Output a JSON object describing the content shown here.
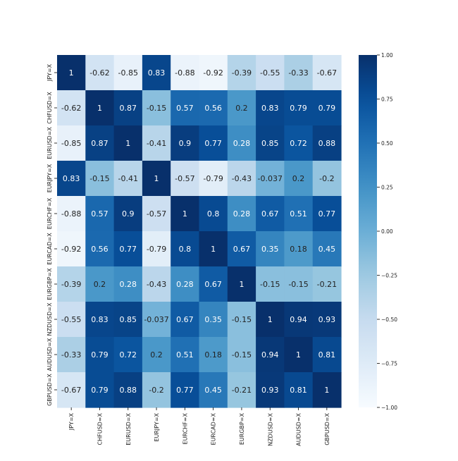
{
  "chart_data": {
    "type": "heatmap",
    "title": "",
    "xlabel": "",
    "ylabel": "",
    "labels": [
      "JPY=X",
      "CHFUSD=X",
      "EURUSD=X",
      "EURJPY=X",
      "EURCHF=X",
      "EURCAD=X",
      "EURGBP=X",
      "NZDUSD=X",
      "AUDUSD=X",
      "GBPUSD=X"
    ],
    "values": [
      [
        1,
        -0.62,
        -0.85,
        0.83,
        -0.88,
        -0.92,
        -0.39,
        -0.55,
        -0.33,
        -0.67
      ],
      [
        -0.62,
        1,
        0.87,
        -0.15,
        0.57,
        0.56,
        0.2,
        0.83,
        0.79,
        0.79
      ],
      [
        -0.85,
        0.87,
        1,
        -0.41,
        0.9,
        0.77,
        0.28,
        0.85,
        0.72,
        0.88
      ],
      [
        0.83,
        -0.15,
        -0.41,
        1,
        -0.57,
        -0.79,
        -0.43,
        -0.037,
        0.2,
        -0.2
      ],
      [
        -0.88,
        0.57,
        0.9,
        -0.57,
        1,
        0.8,
        0.28,
        0.67,
        0.51,
        0.77
      ],
      [
        -0.92,
        0.56,
        0.77,
        -0.79,
        0.8,
        1,
        0.67,
        0.35,
        0.18,
        0.45
      ],
      [
        -0.39,
        0.2,
        0.28,
        -0.43,
        0.28,
        0.67,
        1,
        -0.15,
        -0.15,
        -0.21
      ],
      [
        -0.55,
        0.83,
        0.85,
        -0.037,
        0.67,
        0.35,
        -0.15,
        1,
        0.94,
        0.93
      ],
      [
        -0.33,
        0.79,
        0.72,
        0.2,
        0.51,
        0.18,
        -0.15,
        0.94,
        1,
        0.81
      ],
      [
        -0.67,
        0.79,
        0.88,
        -0.2,
        0.77,
        0.45,
        -0.21,
        0.93,
        0.81,
        1
      ]
    ],
    "colorbar": {
      "range": [
        -1,
        1
      ],
      "ticks": [
        1,
        0.75,
        0.5,
        0.25,
        0,
        -0.25,
        -0.5,
        -0.75,
        -1
      ],
      "tick_labels": [
        "1.00",
        "0.75",
        "0.50",
        "0.25",
        "0.00",
        "−0.25",
        "−0.50",
        "−0.75",
        "−1.00"
      ]
    },
    "colormap": "Blues",
    "colors": {
      "low": "#f7fbff",
      "high": "#08306b",
      "text_dark": "#222222",
      "text_light": "#ffffff"
    },
    "grid": false,
    "legend": "colorbar-right"
  }
}
